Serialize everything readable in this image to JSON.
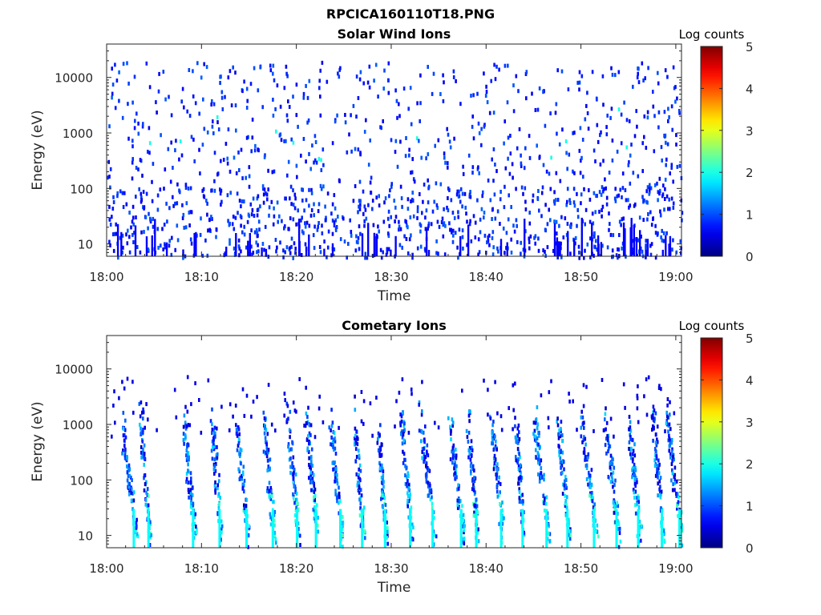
{
  "figure_title": "RPCICA160110T18.PNG",
  "colorbar": {
    "label": "Log counts",
    "ticks": [
      0,
      1,
      2,
      3,
      4,
      5
    ],
    "colormap": "jet"
  },
  "chart_data": [
    {
      "type": "heatmap",
      "title": "Solar Wind Ions",
      "xlabel": "Time",
      "ylabel": "Energy (eV)",
      "xlim": [
        "18:00",
        "19:00"
      ],
      "xticks": [
        "18:00",
        "18:10",
        "18:20",
        "18:30",
        "18:40",
        "18:50",
        "19:00"
      ],
      "ylim": [
        6,
        40000
      ],
      "yscale": "log",
      "yticks": [
        10,
        100,
        1000,
        10000
      ],
      "clim": [
        0,
        5
      ],
      "description_level": "sparse scattered counts across all energies, mostly log counts 0-1, occasional 2 near 1000 eV",
      "level_typical": 0.5,
      "level_max": 2
    },
    {
      "type": "heatmap",
      "title": "Cometary Ions",
      "xlabel": "Time",
      "ylabel": "Energy (eV)",
      "xlim": [
        "18:00",
        "19:00"
      ],
      "xticks": [
        "18:00",
        "18:10",
        "18:20",
        "18:30",
        "18:40",
        "18:50",
        "19:00"
      ],
      "ylim": [
        6,
        40000
      ],
      "yscale": "log",
      "yticks": [
        10,
        100,
        1000,
        10000
      ],
      "clim": [
        0,
        5
      ],
      "level_typical": 1,
      "level_max": 2.5
    }
  ]
}
